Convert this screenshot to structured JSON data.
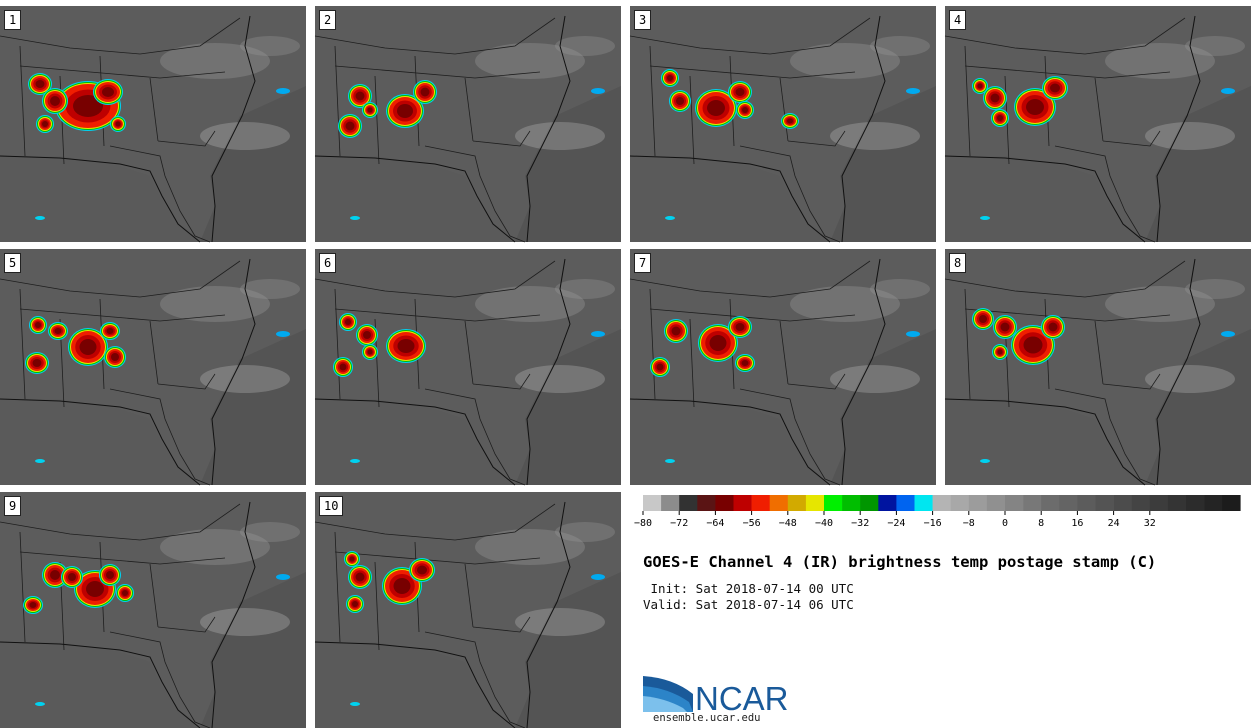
{
  "panels": [
    {
      "label": "1"
    },
    {
      "label": "2"
    },
    {
      "label": "3"
    },
    {
      "label": "4"
    },
    {
      "label": "5"
    },
    {
      "label": "6"
    },
    {
      "label": "7"
    },
    {
      "label": "8"
    },
    {
      "label": "9"
    },
    {
      "label": "10"
    }
  ],
  "title": "GOES-E Channel 4 (IR) brightness temp postage stamp (C)",
  "init_line": " Init: Sat 2018-07-14 00 UTC",
  "valid_line": "Valid: Sat 2018-07-14 06 UTC",
  "colorbar": {
    "colors": [
      "#c8c8c8",
      "#8c8c8c",
      "#323232",
      "#5a1414",
      "#780000",
      "#be0000",
      "#f01e00",
      "#f06e00",
      "#d2aa00",
      "#e6e600",
      "#00f000",
      "#00be00",
      "#009600",
      "#0014a0",
      "#0064f0",
      "#00e6f0",
      "#b4b4b4",
      "#a8a8a8",
      "#9c9c9c",
      "#909090",
      "#848484",
      "#787878",
      "#6c6c6c",
      "#646464",
      "#5c5c5c",
      "#545454",
      "#4c4c4c",
      "#444444",
      "#3c3c3c",
      "#343434",
      "#2c2c2c",
      "#242424",
      "#1c1c1c"
    ],
    "tick_labels": [
      "−80",
      "−72",
      "−64",
      "−56",
      "−48",
      "−40",
      "−32",
      "−24",
      "−16",
      "−8",
      "0",
      "8",
      "16",
      "24",
      "32"
    ]
  },
  "logo": {
    "text": "NCAR",
    "url": "ensemble.ucar.edu",
    "brand_color": "#1a5a9a"
  }
}
